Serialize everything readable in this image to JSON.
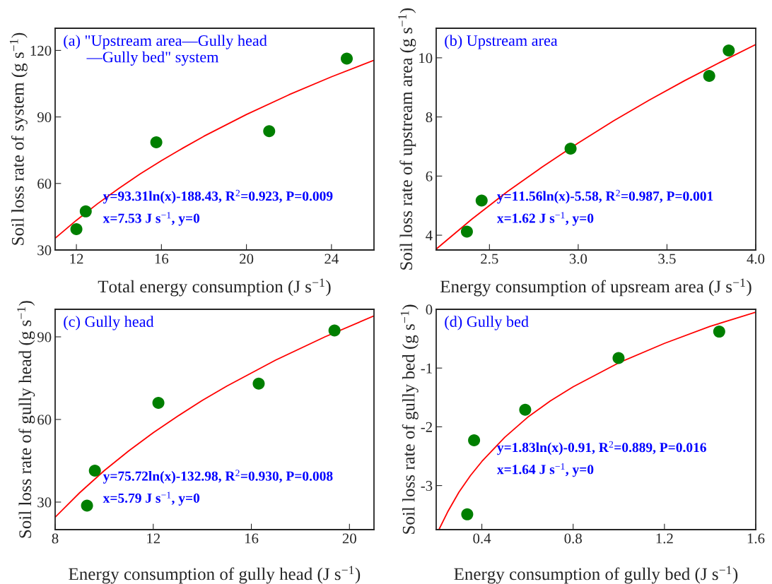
{
  "chart_data": [
    {
      "type": "scatter",
      "xlabel": "Total energy consumption (J s$^{−1}$)",
      "ylabel": "Soil loss rate of system (g s$^{−1}$)",
      "xlim": [
        11,
        26
      ],
      "xticks": [
        12,
        16,
        20,
        24
      ],
      "ylim": [
        30,
        130
      ],
      "yticks": [
        30,
        60,
        90,
        120
      ],
      "grid": false,
      "legend": false,
      "annotations": [
        "(a) \"Upstream area—Gully head\n      —Gully bed\" system",
        "y=93.31ln(x)-188.43, R$^{2}$=0.923, P=0.009",
        "x=7.53 J s$^{−1}$, y=0"
      ],
      "series": [
        {
          "type": "scatter",
          "marker": "circle",
          "color": "#007f00",
          "x": [
            12.0,
            12.44,
            15.76,
            21.07,
            24.72
          ],
          "values": [
            39.4,
            47.4,
            78.6,
            83.6,
            116.3
          ]
        },
        {
          "type": "line",
          "line_style": "solid",
          "marker": "none",
          "color": "#ff0000",
          "x": [
            11,
            12,
            13,
            14,
            15,
            16,
            17,
            18,
            20,
            22,
            24,
            26
          ],
          "values": [
            35.3,
            43.4,
            50.9,
            57.8,
            64.3,
            70.3,
            75.9,
            81.3,
            91.1,
            100.0,
            108.1,
            115.6
          ]
        }
      ]
    },
    {
      "type": "scatter",
      "xlabel": "Energy consumption of upsream area (J s$^{−1}$)",
      "ylabel": "Soil loss rate of upstream area (g s$^{−1}$)",
      "xlim": [
        2.2,
        4.0
      ],
      "xticks": [
        {
          "value": 2.5,
          "label": "2.5"
        },
        {
          "value": 3.0,
          "label": "3.0"
        },
        {
          "value": 3.5,
          "label": "3.5"
        },
        {
          "value": 4.0,
          "label": "4.0"
        }
      ],
      "ylim": [
        3.5,
        11
      ],
      "yticks": [
        4,
        6,
        8,
        10
      ],
      "grid": false,
      "legend": false,
      "annotations": [
        "(b) Upstream area",
        "y=11.56ln(x)-5.58, R$^{2}$=0.987, P=0.001",
        "x=1.62 J s$^{−1}$, y=0"
      ],
      "series": [
        {
          "type": "scatter",
          "marker": "circle",
          "color": "#007f00",
          "x": [
            2.373,
            2.456,
            2.957,
            3.738,
            3.848
          ],
          "values": [
            4.12,
            5.17,
            6.93,
            9.39,
            10.25
          ]
        },
        {
          "type": "line",
          "line_style": "solid",
          "marker": "none",
          "color": "#ff0000",
          "x": [
            2.2,
            2.4,
            2.6,
            2.8,
            3.0,
            3.2,
            3.4,
            3.6,
            3.8,
            4.0
          ],
          "values": [
            3.53,
            4.54,
            5.47,
            6.32,
            7.12,
            7.87,
            8.57,
            9.23,
            9.85,
            10.45
          ]
        }
      ]
    },
    {
      "type": "scatter",
      "xlabel": "Energy consumption of gully head (J s$^{−1}$)",
      "ylabel": "Soil loss rate of gully head (g s$^{−1}$)",
      "xlim": [
        8,
        21
      ],
      "xticks": [
        8,
        12,
        16,
        20
      ],
      "ylim": [
        20,
        100
      ],
      "yticks": [
        30,
        60,
        90
      ],
      "grid": false,
      "legend": false,
      "annotations": [
        "(c) Gully head",
        "y=75.72ln(x)-132.98, R$^{2}$=0.930, P=0.008",
        "x=5.79 J s$^{−1}$, y=0"
      ],
      "series": [
        {
          "type": "scatter",
          "marker": "circle",
          "color": "#007f00",
          "x": [
            9.3,
            9.62,
            12.21,
            16.3,
            19.39
          ],
          "values": [
            28.7,
            41.4,
            66.0,
            73.0,
            92.3
          ]
        },
        {
          "type": "line",
          "line_style": "solid",
          "marker": "none",
          "color": "#ff0000",
          "x": [
            8,
            9,
            10,
            11,
            12,
            13,
            14,
            15,
            17,
            19,
            21
          ],
          "values": [
            24.5,
            33.4,
            41.4,
            48.6,
            55.2,
            61.2,
            66.9,
            72.1,
            81.6,
            90.0,
            97.6
          ]
        }
      ]
    },
    {
      "type": "scatter",
      "xlabel": "Energy consumption of gully bed (J s$^{−1}$)",
      "ylabel": "Soil loss rate of gully bed (g s$^{−1}$)",
      "xlim": [
        0.2,
        1.6
      ],
      "xticks": [
        0.4,
        0.8,
        1.2,
        1.6
      ],
      "ylim": [
        -3.75,
        0
      ],
      "yticks": [
        {
          "value": -3,
          "label": "-3"
        },
        {
          "value": -2,
          "label": "-2"
        },
        {
          "value": -1,
          "label": "-1"
        },
        {
          "value": 0,
          "label": "0"
        }
      ],
      "grid": false,
      "legend": false,
      "annotations": [
        "(d) Gully bed",
        "y=1.83ln(x)-0.91, R$^{2}$=0.889, P=0.016",
        "x=1.64 J s$^{−1}$, y=0"
      ],
      "series": [
        {
          "type": "scatter",
          "marker": "circle",
          "color": "#007f00",
          "x": [
            0.336,
            0.366,
            0.59,
            0.999,
            1.44
          ],
          "values": [
            -3.49,
            -2.23,
            -1.71,
            -0.83,
            -0.38
          ]
        },
        {
          "type": "line",
          "line_style": "solid",
          "marker": "none",
          "color": "#ff0000",
          "x": [
            0.212,
            0.25,
            0.3,
            0.35,
            0.4,
            0.5,
            0.6,
            0.7,
            0.8,
            1.0,
            1.2,
            1.4,
            1.6
          ],
          "values": [
            -3.75,
            -3.45,
            -3.11,
            -2.83,
            -2.59,
            -2.18,
            -1.84,
            -1.56,
            -1.32,
            -0.91,
            -0.58,
            -0.29,
            -0.05
          ]
        }
      ]
    }
  ]
}
